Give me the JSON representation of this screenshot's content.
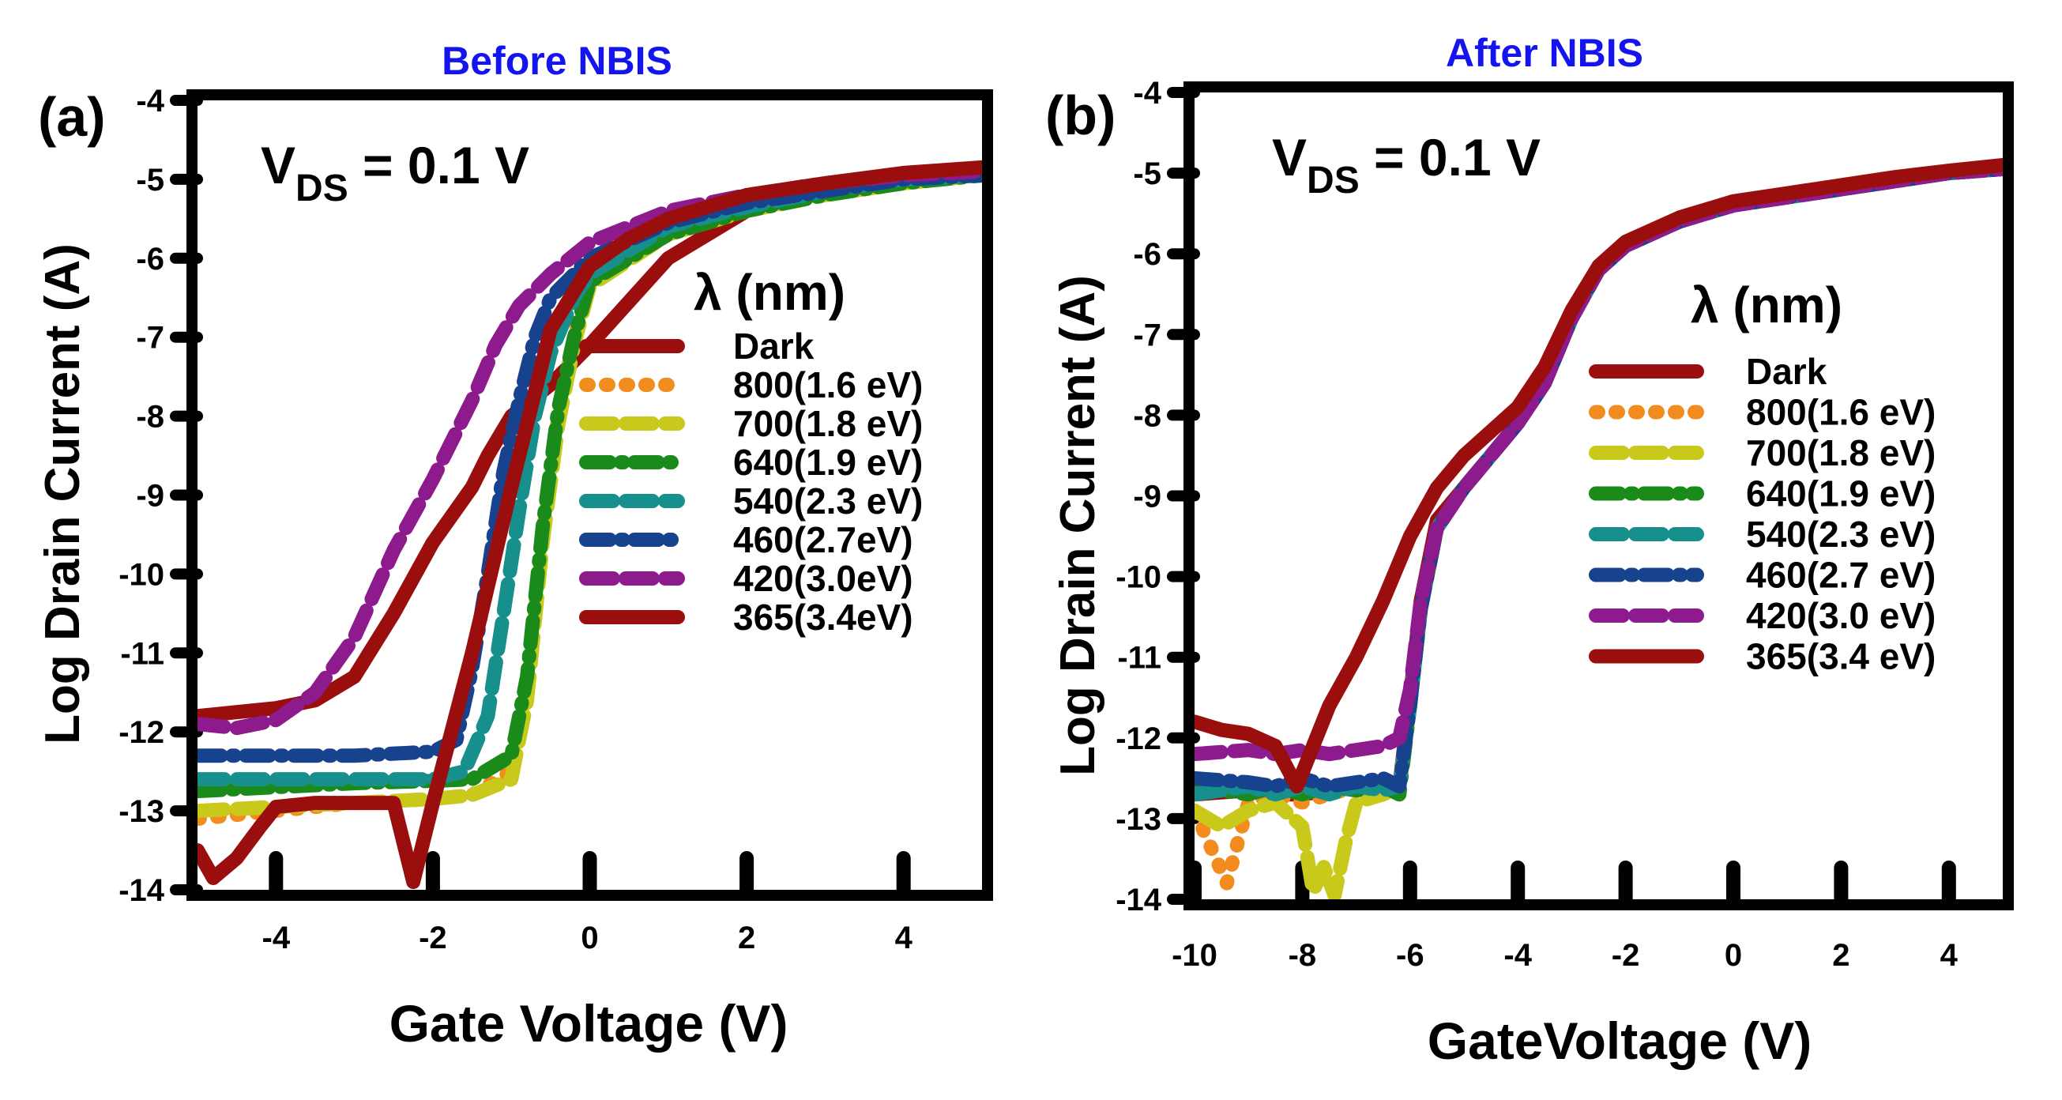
{
  "chart_data": [
    {
      "type": "line",
      "panel_label": "(a)",
      "title": "Before NBIS",
      "title_color": "#1414ee",
      "condition_main": "V",
      "condition_sub": "DS",
      "condition_rest": " = 0.1 V",
      "xlabel": "Gate Voltage (V)",
      "ylabel": "Log Drain Current (A)",
      "xlim": [
        -5,
        5
      ],
      "ylim": [
        -14,
        -4
      ],
      "xticks": [
        -4,
        -2,
        0,
        2,
        4
      ],
      "yticks": [
        -4,
        -5,
        -6,
        -7,
        -8,
        -9,
        -10,
        -11,
        -12,
        -13,
        -14
      ],
      "legend_title": "λ (nm)",
      "legend_position": "right-center",
      "series": [
        {
          "name": "Dark",
          "color": "#9b0e0e",
          "style": "solid",
          "x": [
            -5,
            -4.5,
            -4,
            -3.5,
            -3,
            -2.5,
            -2,
            -1.5,
            -1.3,
            -1,
            -0.5,
            0,
            1,
            2,
            3,
            4,
            5
          ],
          "y": [
            -11.8,
            -11.75,
            -11.7,
            -11.6,
            -11.3,
            -10.5,
            -9.6,
            -8.9,
            -8.5,
            -8.0,
            -7.6,
            -7.1,
            -6.0,
            -5.4,
            -5.1,
            -4.95,
            -4.85
          ]
        },
        {
          "name": "800(1.6 eV)",
          "color": "#f28c1e",
          "style": "dotted",
          "x": [
            -5,
            -4,
            -3,
            -2,
            -1.5,
            -1,
            -0.8,
            -0.6,
            -0.4,
            -0.2,
            0,
            1,
            2,
            3,
            4,
            5
          ],
          "y": [
            -13.1,
            -13.0,
            -12.9,
            -12.85,
            -12.8,
            -12.5,
            -11.5,
            -9.5,
            -8.0,
            -7.0,
            -6.3,
            -5.7,
            -5.4,
            -5.2,
            -5.05,
            -4.95
          ]
        },
        {
          "name": "700(1.8 eV)",
          "color": "#c9c91c",
          "style": "dashed",
          "x": [
            -5,
            -4,
            -3,
            -2,
            -1.5,
            -1,
            -0.8,
            -0.6,
            -0.4,
            -0.2,
            0,
            1,
            2,
            3,
            4,
            5
          ],
          "y": [
            -13.0,
            -12.95,
            -12.9,
            -12.85,
            -12.8,
            -12.6,
            -11.6,
            -9.6,
            -8.1,
            -7.1,
            -6.35,
            -5.7,
            -5.4,
            -5.2,
            -5.05,
            -4.95
          ]
        },
        {
          "name": "640(1.9 eV)",
          "color": "#1a8a1a",
          "style": "dash-dot",
          "x": [
            -5,
            -4,
            -3,
            -2,
            -1.5,
            -1,
            -0.8,
            -0.6,
            -0.4,
            -0.2,
            0,
            1,
            2,
            3,
            4,
            5
          ],
          "y": [
            -12.75,
            -12.7,
            -12.65,
            -12.62,
            -12.6,
            -12.3,
            -11.3,
            -9.4,
            -7.9,
            -7.0,
            -6.3,
            -5.7,
            -5.4,
            -5.2,
            -5.05,
            -4.95
          ]
        },
        {
          "name": "540(2.3 eV)",
          "color": "#178f8c",
          "style": "dashed",
          "x": [
            -5,
            -4,
            -3,
            -2,
            -1.6,
            -1.3,
            -1.1,
            -0.9,
            -0.7,
            -0.5,
            -0.2,
            0,
            1,
            2,
            3,
            4,
            5
          ],
          "y": [
            -12.6,
            -12.6,
            -12.6,
            -12.6,
            -12.5,
            -11.8,
            -10.5,
            -9.2,
            -8.0,
            -7.2,
            -6.5,
            -6.2,
            -5.6,
            -5.35,
            -5.15,
            -5.0,
            -4.95
          ]
        },
        {
          "name": "460(2.7eV)",
          "color": "#17428e",
          "style": "dash-dot",
          "x": [
            -5,
            -4,
            -3,
            -2,
            -1.7,
            -1.5,
            -1.3,
            -1.1,
            -0.9,
            -0.7,
            -0.5,
            0,
            1,
            2,
            3,
            4,
            5
          ],
          "y": [
            -12.3,
            -12.3,
            -12.3,
            -12.25,
            -12.1,
            -11.2,
            -10.0,
            -8.7,
            -7.8,
            -7.0,
            -6.5,
            -6.0,
            -5.55,
            -5.3,
            -5.15,
            -5.0,
            -4.95
          ]
        },
        {
          "name": "420(3.0eV)",
          "color": "#8e1b8e",
          "style": "dashed",
          "x": [
            -5,
            -4.5,
            -4,
            -3.5,
            -3,
            -2.5,
            -2,
            -1.5,
            -1.2,
            -0.9,
            -0.5,
            0,
            1,
            2,
            3,
            4,
            5
          ],
          "y": [
            -11.9,
            -11.95,
            -11.85,
            -11.5,
            -10.8,
            -9.7,
            -8.8,
            -7.8,
            -7.1,
            -6.6,
            -6.2,
            -5.8,
            -5.4,
            -5.2,
            -5.05,
            -4.95,
            -4.9
          ]
        },
        {
          "name": "365(3.4eV)",
          "color": "#9b0e0e",
          "style": "solid",
          "x": [
            -5,
            -4.8,
            -4.5,
            -4.2,
            -4,
            -3.5,
            -3,
            -2.5,
            -2.25,
            -2.0,
            -1.5,
            -1.0,
            -0.5,
            0,
            0.5,
            1,
            2,
            3,
            4,
            5
          ],
          "y": [
            -13.5,
            -13.85,
            -13.6,
            -13.2,
            -12.95,
            -12.9,
            -12.9,
            -12.9,
            -13.9,
            -12.9,
            -11.0,
            -8.9,
            -6.9,
            -6.1,
            -5.75,
            -5.5,
            -5.2,
            -5.05,
            -4.92,
            -4.85
          ]
        }
      ]
    },
    {
      "type": "line",
      "panel_label": "(b)",
      "title": "After NBIS",
      "title_color": "#1414ee",
      "condition_main": "V",
      "condition_sub": "DS",
      "condition_rest": " = 0.1 V",
      "xlabel": "GateVoltage (V)",
      "ylabel": "Log Drain Current (A)",
      "xlim": [
        -10,
        5
      ],
      "ylim": [
        -14,
        -4
      ],
      "xticks": [
        -10,
        -8,
        -6,
        -4,
        -2,
        0,
        2,
        4
      ],
      "yticks": [
        -4,
        -5,
        -6,
        -7,
        -8,
        -9,
        -10,
        -11,
        -12,
        -13,
        -14
      ],
      "legend_title": "λ (nm)",
      "legend_position": "right-center",
      "series": [
        {
          "name": "Dark",
          "color": "#9b0e0e",
          "style": "solid",
          "x": [
            -10,
            -9,
            -8.5,
            -8,
            -7.5,
            -7,
            -6.5,
            -6.2,
            -6,
            -5.8,
            -5.5,
            -5,
            -4.5,
            -4,
            -3.5,
            -3,
            -2.5,
            -2,
            -1,
            0,
            1,
            2,
            3,
            4,
            5
          ],
          "y": [
            -12.7,
            -12.65,
            -12.7,
            -12.7,
            -12.65,
            -12.6,
            -12.6,
            -12.6,
            -11.5,
            -10.3,
            -9.3,
            -8.9,
            -8.5,
            -8.1,
            -7.6,
            -6.8,
            -6.2,
            -5.9,
            -5.6,
            -5.4,
            -5.3,
            -5.2,
            -5.1,
            -5.0,
            -4.95
          ]
        },
        {
          "name": "800(1.6 eV)",
          "color": "#f28c1e",
          "style": "dotted",
          "x": [
            -10,
            -9.8,
            -9.6,
            -9.4,
            -9.2,
            -9,
            -8.5,
            -8,
            -7.5,
            -7,
            -6.5,
            -6.2,
            -6,
            -5.8,
            -5.5,
            -5,
            -4.5,
            -4,
            -3.5,
            -3,
            -2.5,
            -2,
            -1,
            0,
            1,
            2,
            3,
            4,
            5
          ],
          "y": [
            -12.9,
            -13.2,
            -13.5,
            -13.8,
            -13.3,
            -12.8,
            -12.7,
            -12.8,
            -12.7,
            -12.6,
            -12.6,
            -12.6,
            -11.6,
            -10.4,
            -9.4,
            -8.9,
            -8.5,
            -8.1,
            -7.6,
            -6.8,
            -6.2,
            -5.9,
            -5.6,
            -5.4,
            -5.3,
            -5.2,
            -5.1,
            -5.0,
            -4.95
          ]
        },
        {
          "name": "700(1.8 eV)",
          "color": "#c9c91c",
          "style": "dashed",
          "x": [
            -10,
            -9.5,
            -9,
            -8.5,
            -8,
            -7.8,
            -7.6,
            -7.4,
            -7.2,
            -7,
            -6.5,
            -6.2,
            -6,
            -5.8,
            -5.5,
            -5,
            -4.5,
            -4,
            -3.5,
            -3,
            -2.5,
            -2,
            -1,
            0,
            1,
            2,
            3,
            4,
            5
          ],
          "y": [
            -12.9,
            -13.1,
            -12.9,
            -12.8,
            -13.1,
            -13.9,
            -13.6,
            -13.95,
            -13.3,
            -12.8,
            -12.7,
            -12.6,
            -11.6,
            -10.4,
            -9.4,
            -8.9,
            -8.5,
            -8.1,
            -7.6,
            -6.8,
            -6.2,
            -5.9,
            -5.6,
            -5.4,
            -5.3,
            -5.2,
            -5.1,
            -5.0,
            -4.95
          ]
        },
        {
          "name": "640(1.9 eV)",
          "color": "#1a8a1a",
          "style": "dash-dot",
          "x": [
            -10,
            -9,
            -8.5,
            -8,
            -7.5,
            -7,
            -6.5,
            -6.2,
            -6,
            -5.8,
            -5.5,
            -5,
            -4.5,
            -4,
            -3.5,
            -3,
            -2.5,
            -2,
            -1,
            0,
            1,
            2,
            3,
            4,
            5
          ],
          "y": [
            -12.6,
            -12.7,
            -12.6,
            -12.7,
            -12.6,
            -12.65,
            -12.6,
            -12.7,
            -11.6,
            -10.4,
            -9.4,
            -8.9,
            -8.5,
            -8.1,
            -7.6,
            -6.8,
            -6.2,
            -5.9,
            -5.6,
            -5.4,
            -5.3,
            -5.2,
            -5.1,
            -5.0,
            -4.95
          ]
        },
        {
          "name": "540(2.3 eV)",
          "color": "#178f8c",
          "style": "dashed",
          "x": [
            -10,
            -9,
            -8.5,
            -8,
            -7.5,
            -7,
            -6.5,
            -6.2,
            -6,
            -5.8,
            -5.5,
            -5,
            -4.5,
            -4,
            -3.5,
            -3,
            -2.5,
            -2,
            -1,
            0,
            1,
            2,
            3,
            4,
            5
          ],
          "y": [
            -12.7,
            -12.6,
            -12.7,
            -12.6,
            -12.7,
            -12.6,
            -12.65,
            -12.6,
            -11.6,
            -10.4,
            -9.4,
            -8.9,
            -8.5,
            -8.1,
            -7.6,
            -6.8,
            -6.2,
            -5.9,
            -5.6,
            -5.4,
            -5.3,
            -5.2,
            -5.1,
            -5.0,
            -4.95
          ]
        },
        {
          "name": "460(2.7 eV)",
          "color": "#17428e",
          "style": "dash-dot",
          "x": [
            -10,
            -9,
            -8.5,
            -8,
            -7.5,
            -7,
            -6.5,
            -6.2,
            -6,
            -5.8,
            -5.5,
            -5,
            -4.5,
            -4,
            -3.5,
            -3,
            -2.5,
            -2,
            -1,
            0,
            1,
            2,
            3,
            4,
            5
          ],
          "y": [
            -12.5,
            -12.55,
            -12.6,
            -12.5,
            -12.6,
            -12.55,
            -12.5,
            -12.6,
            -11.6,
            -10.4,
            -9.4,
            -8.9,
            -8.5,
            -8.1,
            -7.6,
            -6.8,
            -6.2,
            -5.9,
            -5.6,
            -5.4,
            -5.3,
            -5.2,
            -5.1,
            -5.0,
            -4.95
          ]
        },
        {
          "name": "420(3.0 eV)",
          "color": "#8e1b8e",
          "style": "dashed",
          "x": [
            -10,
            -9,
            -8.5,
            -8,
            -7.5,
            -7,
            -6.5,
            -6.2,
            -6,
            -5.8,
            -5.5,
            -5,
            -4.5,
            -4,
            -3.5,
            -3,
            -2.5,
            -2,
            -1,
            0,
            1,
            2,
            3,
            4,
            5
          ],
          "y": [
            -12.2,
            -12.15,
            -12.2,
            -12.15,
            -12.2,
            -12.15,
            -12.1,
            -12.0,
            -11.4,
            -10.3,
            -9.4,
            -8.9,
            -8.5,
            -8.1,
            -7.6,
            -6.8,
            -6.2,
            -5.9,
            -5.6,
            -5.4,
            -5.3,
            -5.2,
            -5.1,
            -5.0,
            -4.95
          ]
        },
        {
          "name": "365(3.4 eV)",
          "color": "#9b0e0e",
          "style": "solid",
          "x": [
            -10,
            -9.5,
            -9,
            -8.5,
            -8.1,
            -7.5,
            -7,
            -6.5,
            -6,
            -5.5,
            -5,
            -4.5,
            -4,
            -3.5,
            -3,
            -2.5,
            -2,
            -1,
            0,
            1,
            2,
            3,
            4,
            5
          ],
          "y": [
            -11.8,
            -11.9,
            -11.95,
            -12.1,
            -12.6,
            -11.6,
            -11.0,
            -10.3,
            -9.5,
            -8.9,
            -8.5,
            -8.2,
            -7.9,
            -7.4,
            -6.7,
            -6.15,
            -5.85,
            -5.55,
            -5.35,
            -5.25,
            -5.15,
            -5.05,
            -4.97,
            -4.9
          ]
        }
      ]
    }
  ]
}
